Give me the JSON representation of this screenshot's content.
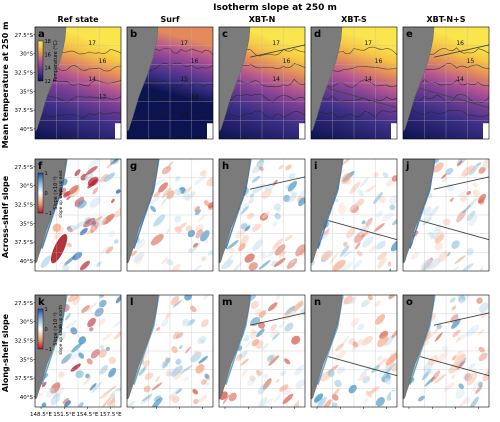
{
  "title": "Isotherm slope at 250 m",
  "column_titles": [
    "Ref state",
    "Surf",
    "XBT-N",
    "XBT-S",
    "XBT-N+S"
  ],
  "row_titles": [
    "Mean temperature at 250 m",
    "Across-shelf slope",
    "Along-shelf slope"
  ],
  "panel_letters": [
    "a",
    "b",
    "c",
    "d",
    "e",
    "f",
    "g",
    "h",
    "i",
    "j",
    "k",
    "l",
    "m",
    "n",
    "o"
  ],
  "colors": {
    "land": "#7b7b7b",
    "temperature_cmap": [
      "#0b1350",
      "#3c2f86",
      "#7a3f94",
      "#b35592",
      "#e28a5c",
      "#f6c745",
      "#fbe54d"
    ],
    "slope_cmap": [
      "#1f4e9c",
      "#8cb8db",
      "#ffffff",
      "#f2a07d",
      "#b2182b"
    ],
    "isotherm_line": "#222222",
    "xbt_line": "#444444"
  },
  "chart_data": [
    {
      "type": "heatmap",
      "description_row": "Mean temperature at 250 m",
      "colorbar": {
        "label": "Temperature (°C)",
        "ticks": [
          "12",
          "14",
          "16",
          "18"
        ],
        "range": [
          12,
          18
        ]
      },
      "contour_labels": {
        "a": [
          "17",
          "16",
          "14",
          "13"
        ],
        "b": [
          "17",
          "16",
          "15",
          "14",
          "13"
        ],
        "c": [
          "17",
          "16",
          "14"
        ],
        "d": [
          "17",
          "16",
          "14"
        ],
        "e": [
          "16",
          "15",
          "14"
        ]
      },
      "yticks": [
        "27.5°S",
        "30°S",
        "32.5°S",
        "35°S",
        "37.5°S",
        "40°S"
      ],
      "ylim": [
        -41.2,
        -26.5
      ]
    },
    {
      "type": "heatmap",
      "description_row": "Across-shelf slope",
      "colorbar": {
        "label": "Slope (×10⁻³)",
        "annotations": [
          "slope up east",
          "slope up west"
        ],
        "ticks": [
          "1",
          "0",
          "−1"
        ],
        "range": [
          -1,
          1
        ]
      },
      "yticks": [
        "27.5°S",
        "30°S",
        "32.5°S",
        "35°S",
        "37.5°S",
        "40°S"
      ]
    },
    {
      "type": "heatmap",
      "description_row": "Along-shelf slope",
      "colorbar": {
        "label": "Slope (×10⁻³)",
        "annotations": [
          "slope up north",
          "slope up south"
        ],
        "ticks": [
          "1",
          "0",
          "−1"
        ],
        "range": [
          -1,
          1
        ]
      },
      "yticks": [
        "27.5°S",
        "30°S",
        "32.5°S",
        "35°S",
        "37.5°S",
        "40°S"
      ],
      "xticks": [
        "148.5°E",
        "151.5°E",
        "154.5°E",
        "157.5°E"
      ],
      "xlim": [
        148.2,
        159.6
      ]
    }
  ],
  "xbt_lines": {
    "XBT-N": true,
    "XBT-S": true,
    "XBT-N+S": true
  }
}
